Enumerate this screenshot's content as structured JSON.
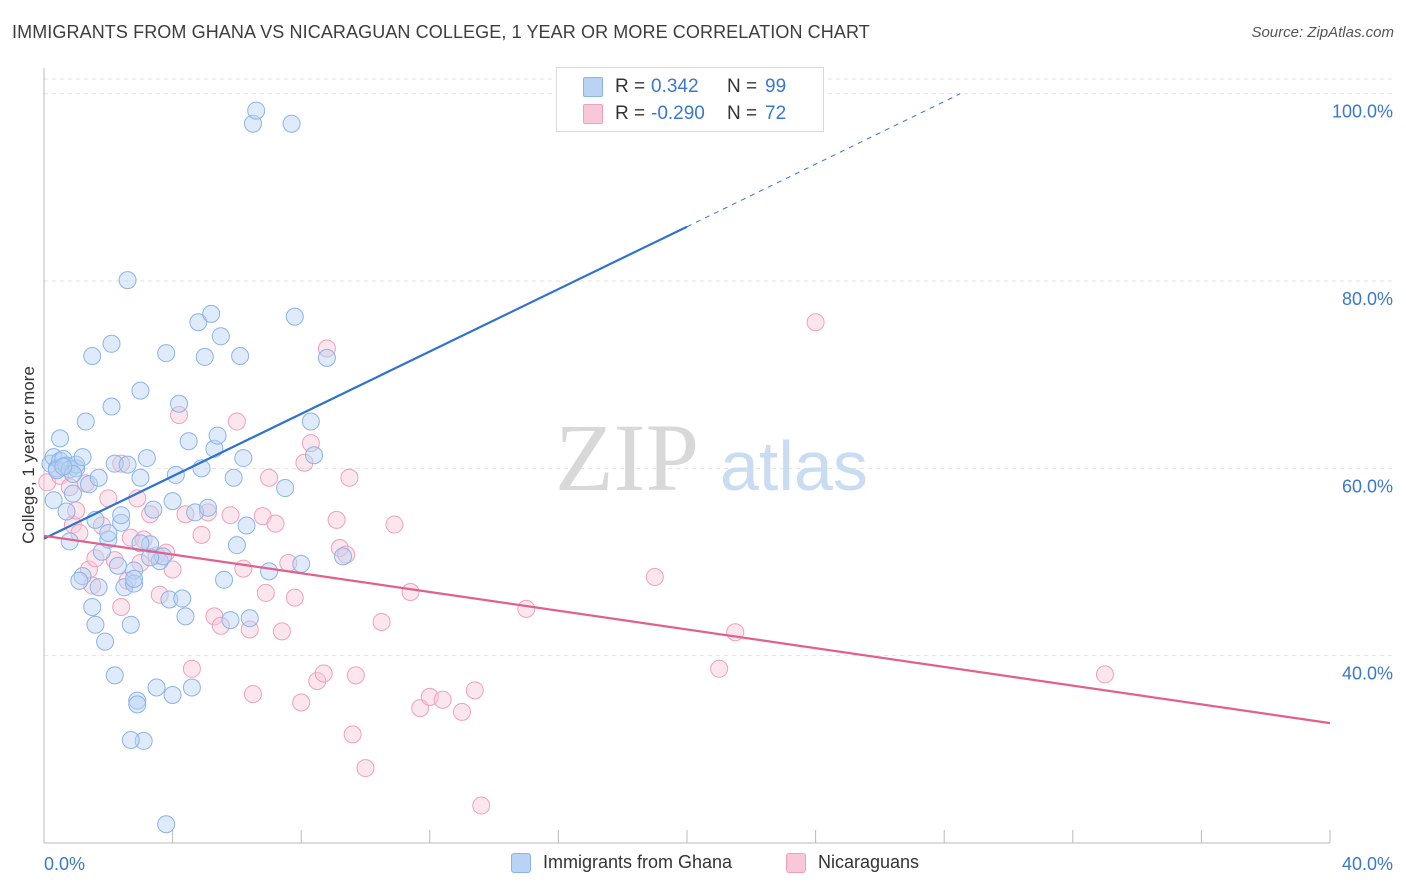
{
  "title": "IMMIGRANTS FROM GHANA VS NICARAGUAN COLLEGE, 1 YEAR OR MORE CORRELATION CHART",
  "source": "Source: ZipAtlas.com",
  "watermark": {
    "zip": "ZIP",
    "atlas": "atlas"
  },
  "colors": {
    "blue": "#8ab4e8",
    "blue_fill": "#b8d3f3",
    "blue_line": "#2f72d0",
    "pink": "#f0a0bc",
    "pink_fill": "#f8c8d8",
    "pink_line": "#e0608e",
    "axis_label": "#3a78d0"
  },
  "legend": {
    "rows": [
      {
        "r_label": "R =",
        "r_value": "0.342",
        "n_label": "N =",
        "n_value": "99"
      },
      {
        "r_label": "R =",
        "r_value": "-0.290",
        "n_label": "N =",
        "n_value": "72"
      }
    ]
  },
  "bottom_legend": [
    {
      "label": "Immigrants from Ghana"
    },
    {
      "label": "Nicaraguans"
    }
  ],
  "chart_data": {
    "type": "scatter",
    "xlabel": "",
    "ylabel": "College, 1 year or more",
    "xlim": [
      0,
      40
    ],
    "ylim": [
      20,
      102
    ],
    "x_tick_labels": [
      "0.0%",
      "40.0%"
    ],
    "y_tick_values": [
      40,
      60,
      80,
      100
    ],
    "y_tick_labels": [
      "40.0%",
      "60.0%",
      "80.0%",
      "100.0%"
    ],
    "grid": true,
    "series": [
      {
        "name": "Immigrants from Ghana",
        "color": "#8ab4e8",
        "trend": {
          "x": [
            0,
            20
          ],
          "y": [
            52.5,
            85.8
          ],
          "dash_to": [
            28.5,
            100
          ]
        },
        "points": [
          [
            0.2,
            60.5
          ],
          [
            0.3,
            61.2
          ],
          [
            0.4,
            60.0
          ],
          [
            0.5,
            60.8
          ],
          [
            0.6,
            61.0
          ],
          [
            0.4,
            59.8
          ],
          [
            0.7,
            60.3
          ],
          [
            0.8,
            59.9
          ],
          [
            0.5,
            63.2
          ],
          [
            0.7,
            55.4
          ],
          [
            0.8,
            52.2
          ],
          [
            1.0,
            60.0
          ],
          [
            0.9,
            57.3
          ],
          [
            1.2,
            48.5
          ],
          [
            1.1,
            48.0
          ],
          [
            1.3,
            65.0
          ],
          [
            1.4,
            58.3
          ],
          [
            1.5,
            45.2
          ],
          [
            1.6,
            54.5
          ],
          [
            1.7,
            59.0
          ],
          [
            1.8,
            51.1
          ],
          [
            1.9,
            41.5
          ],
          [
            2.0,
            52.4
          ],
          [
            2.0,
            53.1
          ],
          [
            2.1,
            66.6
          ],
          [
            2.2,
            60.5
          ],
          [
            2.2,
            37.9
          ],
          [
            2.3,
            49.6
          ],
          [
            2.4,
            54.2
          ],
          [
            2.5,
            47.3
          ],
          [
            2.6,
            60.4
          ],
          [
            2.7,
            43.3
          ],
          [
            2.8,
            49.1
          ],
          [
            2.8,
            47.7
          ],
          [
            2.9,
            35.2
          ],
          [
            3.0,
            68.3
          ],
          [
            3.0,
            59.0
          ],
          [
            3.1,
            30.9
          ],
          [
            3.2,
            61.1
          ],
          [
            3.3,
            51.9
          ],
          [
            3.4,
            55.6
          ],
          [
            3.6,
            50.1
          ],
          [
            3.8,
            72.3
          ],
          [
            3.7,
            50.6
          ],
          [
            3.9,
            46.0
          ],
          [
            4.0,
            35.8
          ],
          [
            4.1,
            59.3
          ],
          [
            4.2,
            66.9
          ],
          [
            4.3,
            46.1
          ],
          [
            4.4,
            44.2
          ],
          [
            4.5,
            62.9
          ],
          [
            4.6,
            36.6
          ],
          [
            4.7,
            55.3
          ],
          [
            4.8,
            75.6
          ],
          [
            4.9,
            60.0
          ],
          [
            5.0,
            71.9
          ],
          [
            5.1,
            55.8
          ],
          [
            5.2,
            76.5
          ],
          [
            5.3,
            62.1
          ],
          [
            5.4,
            63.5
          ],
          [
            5.5,
            74.1
          ],
          [
            5.6,
            48.1
          ],
          [
            5.8,
            43.8
          ],
          [
            5.9,
            59.0
          ],
          [
            6.0,
            51.8
          ],
          [
            6.1,
            72.0
          ],
          [
            6.2,
            61.1
          ],
          [
            6.3,
            53.9
          ],
          [
            6.4,
            44.0
          ],
          [
            6.5,
            96.8
          ],
          [
            6.6,
            98.2
          ],
          [
            7.0,
            49.0
          ],
          [
            7.5,
            57.9
          ],
          [
            7.7,
            96.8
          ],
          [
            7.8,
            76.2
          ],
          [
            8.0,
            49.8
          ],
          [
            8.3,
            65.0
          ],
          [
            8.4,
            61.4
          ],
          [
            8.8,
            71.8
          ],
          [
            9.3,
            50.6
          ],
          [
            0.3,
            56.6
          ],
          [
            1.0,
            60.4
          ],
          [
            1.5,
            72.0
          ],
          [
            2.1,
            73.3
          ],
          [
            2.4,
            55.0
          ],
          [
            2.6,
            80.1
          ],
          [
            3.5,
            36.6
          ],
          [
            2.9,
            34.8
          ],
          [
            1.6,
            43.3
          ],
          [
            1.2,
            61.2
          ],
          [
            0.9,
            59.4
          ],
          [
            4.0,
            56.5
          ],
          [
            3.0,
            52.0
          ],
          [
            3.3,
            50.5
          ],
          [
            1.7,
            47.3
          ],
          [
            2.8,
            48.2
          ],
          [
            0.6,
            60.2
          ],
          [
            2.7,
            31.0
          ],
          [
            3.8,
            22.0
          ]
        ]
      },
      {
        "name": "Nicaraguans",
        "color": "#f0a0bc",
        "trend": {
          "x": [
            0,
            40
          ],
          "y": [
            52.8,
            32.8
          ]
        },
        "points": [
          [
            0.1,
            58.5
          ],
          [
            0.5,
            59.2
          ],
          [
            0.8,
            58.0
          ],
          [
            0.9,
            54.0
          ],
          [
            1.0,
            55.5
          ],
          [
            1.1,
            53.1
          ],
          [
            1.3,
            58.4
          ],
          [
            1.4,
            49.2
          ],
          [
            1.5,
            47.5
          ],
          [
            1.6,
            50.4
          ],
          [
            1.8,
            53.9
          ],
          [
            2.0,
            56.8
          ],
          [
            2.2,
            50.2
          ],
          [
            2.4,
            45.2
          ],
          [
            2.6,
            48.0
          ],
          [
            2.7,
            52.6
          ],
          [
            2.9,
            56.8
          ],
          [
            3.0,
            49.9
          ],
          [
            3.1,
            52.4
          ],
          [
            3.3,
            55.1
          ],
          [
            3.5,
            50.7
          ],
          [
            3.6,
            46.5
          ],
          [
            3.8,
            51.0
          ],
          [
            4.0,
            49.2
          ],
          [
            4.2,
            65.7
          ],
          [
            4.4,
            55.1
          ],
          [
            4.6,
            38.6
          ],
          [
            4.9,
            52.9
          ],
          [
            5.1,
            55.3
          ],
          [
            5.3,
            44.2
          ],
          [
            5.5,
            43.2
          ],
          [
            5.8,
            55.0
          ],
          [
            6.0,
            65.0
          ],
          [
            6.2,
            49.3
          ],
          [
            6.4,
            42.8
          ],
          [
            6.5,
            35.9
          ],
          [
            6.8,
            54.9
          ],
          [
            6.9,
            46.7
          ],
          [
            7.0,
            59.0
          ],
          [
            7.2,
            54.1
          ],
          [
            7.4,
            42.6
          ],
          [
            7.6,
            49.9
          ],
          [
            7.8,
            46.2
          ],
          [
            8.0,
            35.0
          ],
          [
            8.1,
            60.6
          ],
          [
            8.3,
            62.7
          ],
          [
            8.5,
            37.3
          ],
          [
            8.7,
            38.1
          ],
          [
            8.8,
            72.8
          ],
          [
            9.1,
            54.5
          ],
          [
            9.2,
            51.5
          ],
          [
            9.4,
            50.8
          ],
          [
            9.5,
            59.0
          ],
          [
            9.6,
            31.6
          ],
          [
            9.7,
            37.9
          ],
          [
            10.0,
            28.0
          ],
          [
            10.5,
            43.6
          ],
          [
            10.9,
            54.0
          ],
          [
            11.4,
            46.8
          ],
          [
            11.7,
            34.4
          ],
          [
            12.0,
            35.6
          ],
          [
            12.4,
            35.3
          ],
          [
            13.0,
            34.0
          ],
          [
            13.4,
            36.3
          ],
          [
            13.6,
            24.0
          ],
          [
            15.0,
            45.0
          ],
          [
            19.0,
            48.4
          ],
          [
            21.0,
            38.6
          ],
          [
            21.5,
            42.5
          ],
          [
            24.0,
            75.6
          ],
          [
            33.0,
            38.0
          ],
          [
            2.4,
            60.5
          ]
        ]
      }
    ]
  }
}
